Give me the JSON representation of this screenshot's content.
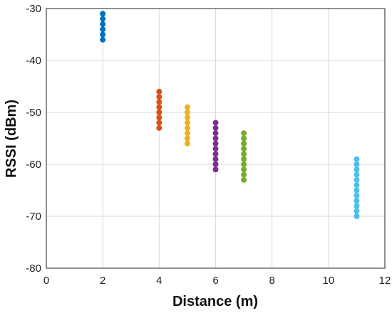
{
  "chart_data": {
    "type": "scatter",
    "title": "",
    "xlabel": "Distance (m)",
    "ylabel": "RSSI (dBm)",
    "xlim": [
      0,
      12
    ],
    "ylim": [
      -80,
      -30
    ],
    "xticks": [
      0,
      2,
      4,
      6,
      8,
      10,
      12
    ],
    "yticks": [
      -80,
      -70,
      -60,
      -50,
      -40,
      -30
    ],
    "grid": true,
    "legend": "none",
    "series": [
      {
        "color": "#0072BD",
        "x": 2,
        "y": [
          -31,
          -32,
          -33,
          -34,
          -35,
          -36
        ]
      },
      {
        "color": "#D95319",
        "x": 4,
        "y": [
          -46,
          -47,
          -48,
          -49,
          -50,
          -51,
          -52,
          -53
        ]
      },
      {
        "color": "#EDB120",
        "x": 5,
        "y": [
          -49,
          -50,
          -51,
          -52,
          -53,
          -54,
          -55,
          -56
        ]
      },
      {
        "color": "#7E2F8E",
        "x": 6,
        "y": [
          -52,
          -53,
          -54,
          -55,
          -56,
          -57,
          -58,
          -59,
          -60,
          -61
        ]
      },
      {
        "color": "#77AC30",
        "x": 7,
        "y": [
          -54,
          -55,
          -56,
          -57,
          -58,
          -59,
          -60,
          -61,
          -62,
          -63
        ]
      },
      {
        "color": "#4DBEEE",
        "x": 11,
        "y": [
          -59,
          -60,
          -61,
          -62,
          -63,
          -64,
          -65,
          -66,
          -67,
          -68,
          -69,
          -70
        ]
      }
    ]
  }
}
